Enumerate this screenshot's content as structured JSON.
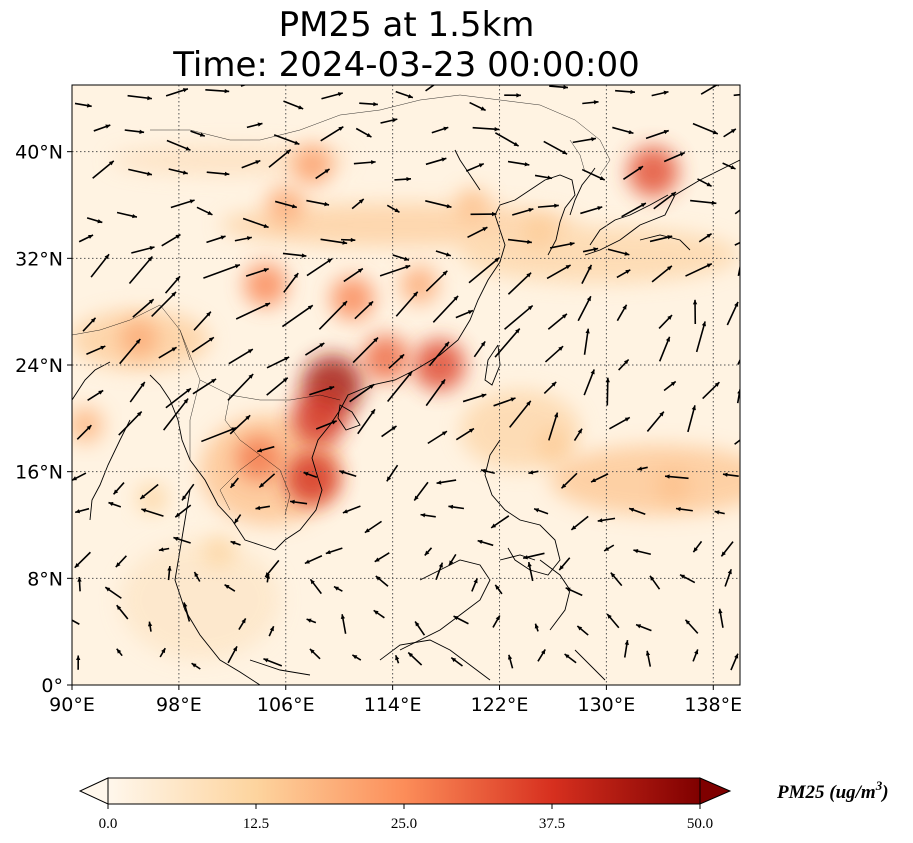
{
  "title_line1": "PM25 at 1.5km",
  "title_line2": "Time: 2024-03-23 00:00:00",
  "map": {
    "lon_range": [
      90,
      140
    ],
    "lat_range": [
      0,
      45
    ],
    "lon_ticks": [
      {
        "value": 90,
        "label": "90°E"
      },
      {
        "value": 98,
        "label": "98°E"
      },
      {
        "value": 106,
        "label": "106°E"
      },
      {
        "value": 114,
        "label": "114°E"
      },
      {
        "value": 122,
        "label": "122°E"
      },
      {
        "value": 130,
        "label": "130°E"
      },
      {
        "value": 138,
        "label": "138°E"
      }
    ],
    "lat_ticks": [
      {
        "value": 0,
        "label": "0°"
      },
      {
        "value": 8,
        "label": "8°N"
      },
      {
        "value": 16,
        "label": "16°N"
      },
      {
        "value": 24,
        "label": "24°N"
      },
      {
        "value": 32,
        "label": "32°N"
      },
      {
        "value": 40,
        "label": "40°N"
      }
    ],
    "gridlines": "dotted",
    "field_variable": "PM25",
    "overlay": "wind vectors",
    "pollution_hotspots": [
      {
        "lon": 109.5,
        "lat": 22.5,
        "value": 45
      },
      {
        "lon": 108.5,
        "lat": 20.0,
        "value": 38
      },
      {
        "lon": 108.0,
        "lat": 15.5,
        "value": 38
      },
      {
        "lon": 104.0,
        "lat": 17.0,
        "value": 28
      },
      {
        "lon": 117.5,
        "lat": 24.0,
        "value": 35
      },
      {
        "lon": 113.5,
        "lat": 24.5,
        "value": 30
      },
      {
        "lon": 133.5,
        "lat": 38.5,
        "value": 34
      },
      {
        "lon": 104.5,
        "lat": 30.0,
        "value": 26
      },
      {
        "lon": 111.0,
        "lat": 29.0,
        "value": 26
      },
      {
        "lon": 108.0,
        "lat": 39.0,
        "value": 22
      },
      {
        "lon": 106.0,
        "lat": 36.0,
        "value": 20
      },
      {
        "lon": 95.0,
        "lat": 26.0,
        "value": 20
      },
      {
        "lon": 91.0,
        "lat": 19.5,
        "value": 18
      },
      {
        "lon": 135.0,
        "lat": 15.0,
        "value": 16
      },
      {
        "lon": 126.0,
        "lat": 18.0,
        "value": 14
      },
      {
        "lon": 120.0,
        "lat": 36.0,
        "value": 16
      },
      {
        "lon": 125.0,
        "lat": 34.0,
        "value": 14
      },
      {
        "lon": 116.0,
        "lat": 30.0,
        "value": 20
      },
      {
        "lon": 101.0,
        "lat": 10.0,
        "value": 12
      },
      {
        "lon": 96.0,
        "lat": 14.0,
        "value": 12
      }
    ]
  },
  "colorbar": {
    "colormap": "OrRd",
    "min": 0.0,
    "max": 50.0,
    "extend": "both",
    "ticks": [
      "0.0",
      "12.5",
      "25.0",
      "37.5",
      "50.0"
    ],
    "label_main": "PM25 (ug/m",
    "label_sup": "3",
    "label_end": ")"
  }
}
